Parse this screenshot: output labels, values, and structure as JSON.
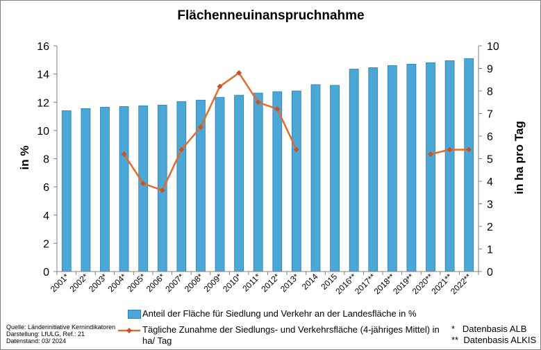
{
  "chart_data": {
    "type": "bar+line",
    "title": "Flächenneuinanspruchnahme",
    "categories": [
      "2001*",
      "2002*",
      "2003*",
      "2004*",
      "2005*",
      "2006*",
      "2007*",
      "2008*",
      "2009*",
      "2010*",
      "2011*",
      "2012*",
      "2013*",
      "2014",
      "2015",
      "2016**",
      "2017**",
      "2018**",
      "2019**",
      "2020**",
      "2021**",
      "2022**"
    ],
    "series": [
      {
        "name": "Anteil der Fläche für Siedlung und Verkehr an der Landesfläche in %",
        "type": "bar",
        "axis": "left",
        "color": "#4ba7d6",
        "values": [
          11.4,
          11.55,
          11.65,
          11.7,
          11.75,
          11.8,
          12.05,
          12.15,
          12.35,
          12.5,
          12.65,
          12.75,
          12.8,
          13.25,
          13.2,
          14.35,
          14.45,
          14.6,
          14.7,
          14.8,
          14.95,
          15.1
        ]
      },
      {
        "name": "Tägliche Zunahme der Siedlungs- und Verkehrsfläche (4-jähriges Mittel) in ha/ Tag",
        "type": "line",
        "axis": "right",
        "color": "#e46a2a",
        "values": [
          null,
          null,
          null,
          5.2,
          3.9,
          3.6,
          5.4,
          6.4,
          8.2,
          8.8,
          7.5,
          7.2,
          5.4,
          null,
          null,
          null,
          null,
          null,
          null,
          5.2,
          5.4,
          5.4
        ]
      }
    ],
    "y_left": {
      "label": "in %",
      "range": [
        0,
        16
      ],
      "ticks": [
        "0",
        "2",
        "4",
        "6",
        "8",
        "10",
        "12",
        "14",
        "16"
      ]
    },
    "y_right": {
      "label": "in ha pro Tag",
      "range": [
        0,
        10
      ],
      "ticks": [
        "0",
        "1",
        "2",
        "3",
        "4",
        "5",
        "6",
        "7",
        "8",
        "9",
        "10"
      ]
    },
    "grid": false,
    "legend_placement": "bottom"
  },
  "legend": {
    "bar_label": "Anteil der Fläche für Siedlung und Verkehr an der Landesfläche in %",
    "line_label_1": "Tägliche Zunahme der Siedlungs- und Verkehrsfläche (4-jähriges Mittel) in",
    "line_label_2": "ha/ Tag"
  },
  "source": {
    "quelle": "Quelle:  Länderinitiative  Kernindikatoren",
    "darstellung": "Darstellung:  LfULG, Ref.: 21",
    "datenstand": "Datenstand:  03/ 2024"
  },
  "notes": {
    "alb": "*   Datenbasis ALB",
    "alkis": "**  Datenbasis ALKIS"
  }
}
